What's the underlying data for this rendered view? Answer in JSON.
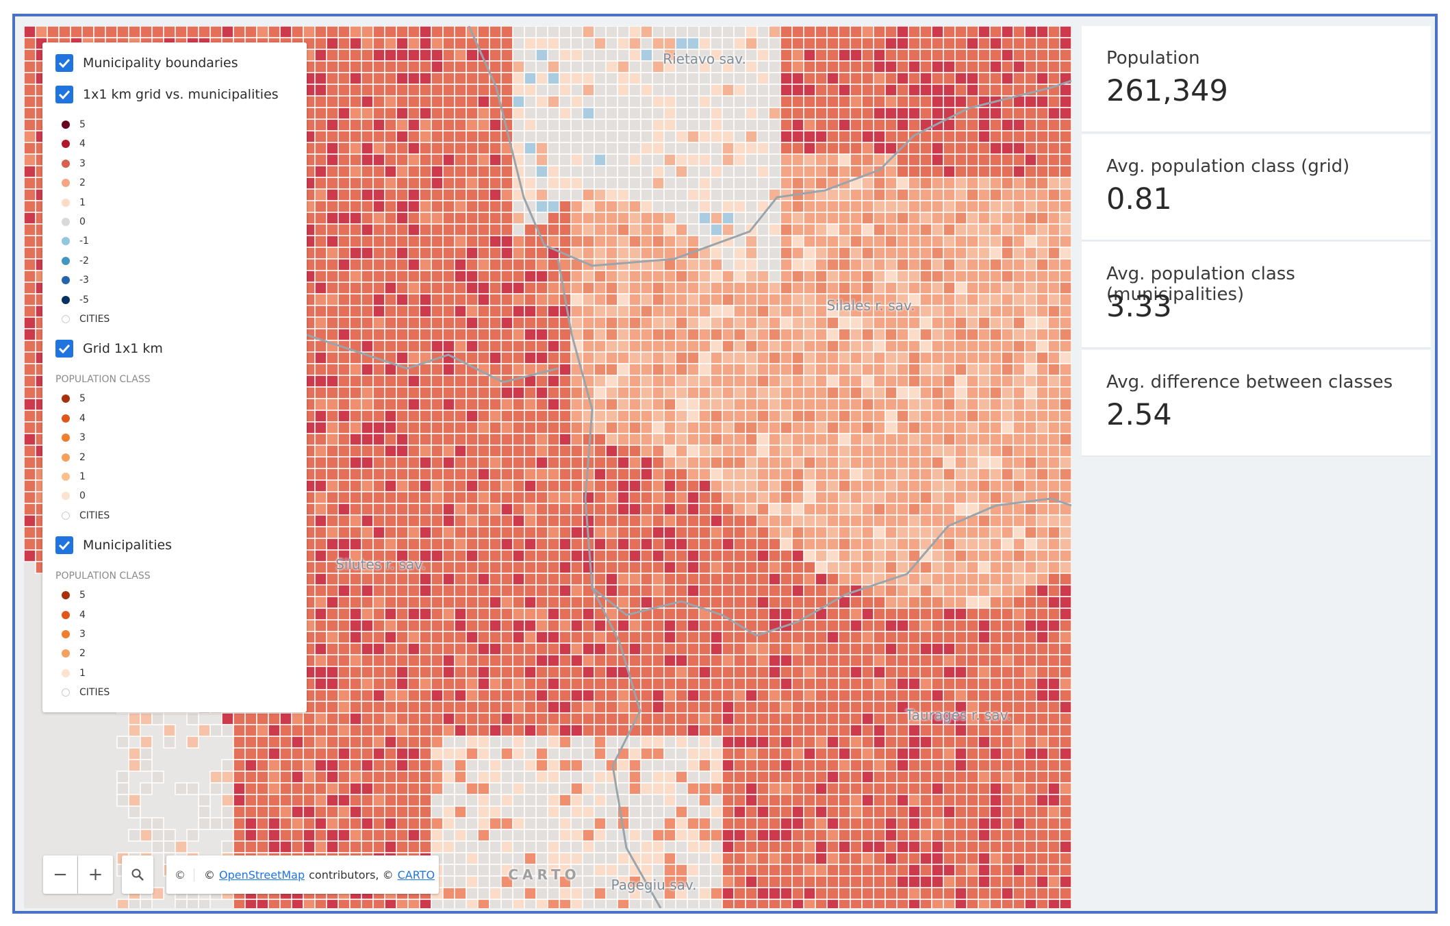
{
  "legend": {
    "layers": [
      {
        "label": "Municipality boundaries"
      },
      {
        "label": "1x1 km grid vs. municipalities",
        "items": [
          {
            "label": "5",
            "color": "#67001f"
          },
          {
            "label": "4",
            "color": "#b2182b"
          },
          {
            "label": "3",
            "color": "#d6604d"
          },
          {
            "label": "2",
            "color": "#f4a582"
          },
          {
            "label": "1",
            "color": "#fddbc7"
          },
          {
            "label": "0",
            "color": "#d9d9d9"
          },
          {
            "label": "-1",
            "color": "#92c5de"
          },
          {
            "label": "-2",
            "color": "#4393c3"
          },
          {
            "label": "-3",
            "color": "#2166ac"
          },
          {
            "label": "-5",
            "color": "#053061"
          },
          {
            "label": "CITIES",
            "color": "#ffffff"
          }
        ]
      },
      {
        "label": "Grid 1x1 km",
        "subtitle": "POPULATION CLASS",
        "items": [
          {
            "label": "5",
            "color": "#a8300c"
          },
          {
            "label": "4",
            "color": "#e0561a"
          },
          {
            "label": "3",
            "color": "#f07e2e"
          },
          {
            "label": "2",
            "color": "#f5a05c"
          },
          {
            "label": "1",
            "color": "#f9c08e"
          },
          {
            "label": "0",
            "color": "#fbe3d0"
          },
          {
            "label": "CITIES",
            "color": "#ffffff"
          }
        ]
      },
      {
        "label": "Municipalities",
        "subtitle": "POPULATION CLASS",
        "items": [
          {
            "label": "5",
            "color": "#a8300c"
          },
          {
            "label": "4",
            "color": "#e0561a"
          },
          {
            "label": "3",
            "color": "#f07e2e"
          },
          {
            "label": "2",
            "color": "#f5a05c"
          },
          {
            "label": "1",
            "color": "#fbe3d0"
          },
          {
            "label": "CITIES",
            "color": "#ffffff"
          }
        ]
      }
    ]
  },
  "map": {
    "labels": [
      "Rietavo sav.",
      "Silales r. sav.",
      "Silutes r. sav.",
      "Taurages r. sav.",
      "Pagegiu sav."
    ],
    "watermark": "CARTO",
    "controls": [
      "−",
      "+"
    ],
    "attribution_button": "©",
    "attribution": {
      "prefix": "©",
      "link1": "OpenStreetMap",
      "middle": "contributors, ©",
      "link2": "CARTO"
    }
  },
  "widgets": [
    {
      "label": "Population",
      "value": "261,349"
    },
    {
      "label": "Avg. population class (grid)",
      "value": "0.81"
    },
    {
      "label": "Avg. population class (municipalities)",
      "value": "3.33"
    },
    {
      "label": "Avg. difference between classes",
      "value": "2.54"
    }
  ]
}
